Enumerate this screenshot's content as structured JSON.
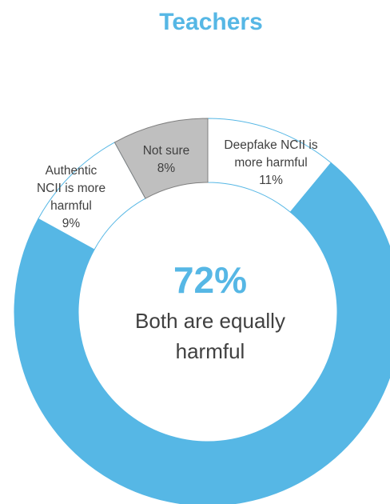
{
  "chart_data": {
    "type": "pie",
    "title": "Teachers",
    "donut": true,
    "segments": [
      {
        "label": "Both are equally harmful",
        "label_lines": [
          "Both are equally",
          "harmful"
        ],
        "value": 72,
        "value_text": "72%",
        "color": "#56B7E5"
      },
      {
        "label": "Authentic NCII is more harmful",
        "label_lines": [
          "Authentic",
          "NCII is more",
          "harmful"
        ],
        "value": 9,
        "value_text": "9%",
        "color": "#FFFFFF"
      },
      {
        "label": "Not sure",
        "label_lines": [
          "Not sure"
        ],
        "value": 8,
        "value_text": "8%",
        "color": "#BFBFBF"
      },
      {
        "label": "Deepfake NCII is more harmful",
        "label_lines": [
          "Deepfake NCII is",
          "more harmful"
        ],
        "value": 11,
        "value_text": "11%",
        "color": "#FFFFFF"
      }
    ]
  },
  "colors": {
    "accent": "#56B7E5",
    "outline": "#56B7E5",
    "not_sure_stroke": "#7F7F7F",
    "label_text": "#404040",
    "title": "#56B7E5"
  }
}
